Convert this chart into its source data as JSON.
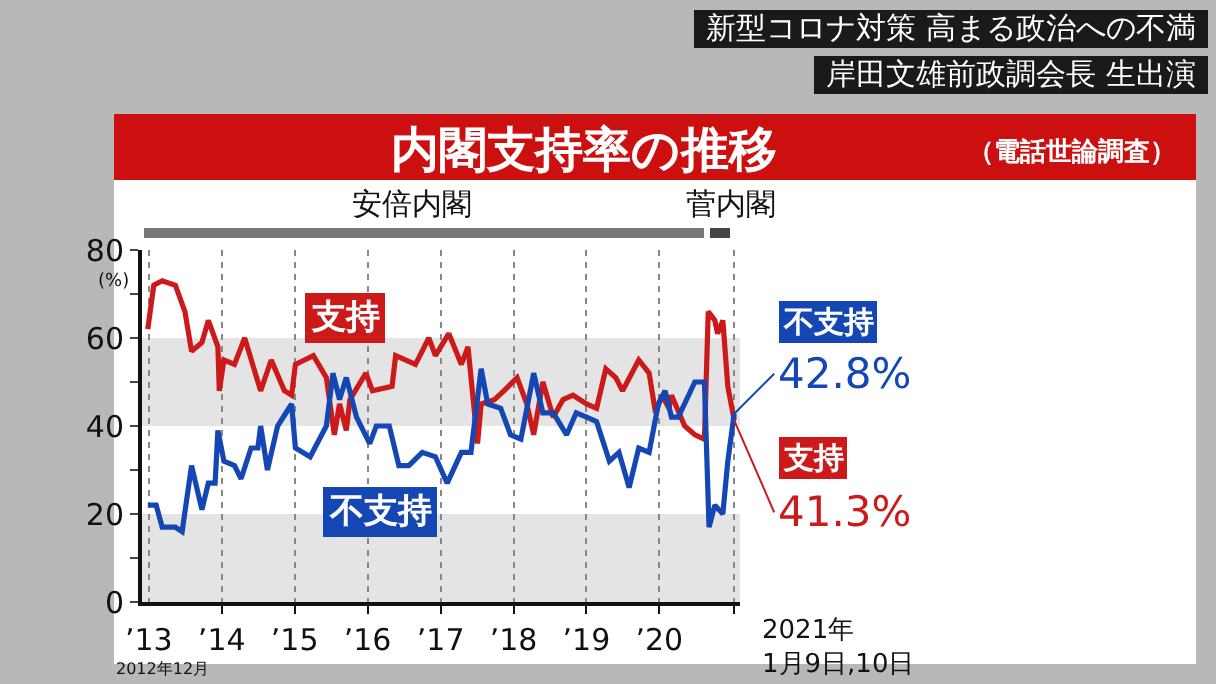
{
  "chart_data": {
    "type": "line",
    "title": "内閣支持率の推移",
    "subtitle": "（電話世論調査）",
    "ylabel": "(%)",
    "annotations": [
      "新型コロナ対策 高まる政治への不満",
      "岸田文雄前政調会長 生出演",
      "2012年12月",
      "2021年\n1月9日,10日",
      "安倍内閣",
      "菅内閣"
    ],
    "xlim": [
      "2012-11-28",
      "2021-02-08"
    ],
    "xticks": [
      {
        "value": "2013-01-01",
        "label": "’13"
      },
      {
        "value": "2014-01-01",
        "label": "’14"
      },
      {
        "value": "2015-01-01",
        "label": "’15"
      },
      {
        "value": "2016-01-01",
        "label": "’16"
      },
      {
        "value": "2017-01-01",
        "label": "’17"
      },
      {
        "value": "2018-01-01",
        "label": "’18"
      },
      {
        "value": "2019-01-01",
        "label": "’19"
      },
      {
        "value": "2020-01-01",
        "label": "’20"
      },
      {
        "value": "2021-01-10",
        "label": null
      }
    ],
    "ylim": [
      0,
      80
    ],
    "yticks": [
      0,
      {
        "value": 10,
        "label": null
      },
      20,
      {
        "value": 30,
        "label": null
      },
      40,
      {
        "value": 50,
        "label": null
      },
      60,
      {
        "value": 70,
        "label": null
      },
      80
    ],
    "grid": "x",
    "legend": false,
    "line_style": "solid",
    "bands": [
      {
        "axis": "y",
        "from": 0,
        "to": 20,
        "color": "#e4e4e4"
      },
      {
        "axis": "y",
        "from": 40,
        "to": 60,
        "color": "#e4e4e4"
      }
    ],
    "series": [
      {
        "name": "支持",
        "color": "#cc1a1a",
        "x": [
          "2012-12-27",
          "2013-01-26",
          "2013-03-09",
          "2013-05-14",
          "2013-07-01",
          "2013-08-03",
          "2013-09-24",
          "2013-10-26",
          "2013-12-13",
          "2013-12-20",
          "2014-01-12",
          "2014-03-06",
          "2014-04-26",
          "2014-07-15",
          "2014-09-06",
          "2014-11-11",
          "2014-12-17",
          "2015-01-05",
          "2015-04-05",
          "2015-06-09",
          "2015-07-19",
          "2015-08-14",
          "2015-09-17",
          "2015-10-05",
          "2015-12-24",
          "2016-01-26",
          "2016-05-03",
          "2016-05-21",
          "2016-08-28",
          "2016-11-03",
          "2016-12-06",
          "2017-02-11",
          "2017-04-15",
          "2017-05-18",
          "2017-07-05",
          "2017-07-23",
          "2017-09-27",
          "2017-11-14",
          "2018-01-19",
          "2018-03-09",
          "2018-04-12",
          "2018-05-28",
          "2018-07-19",
          "2018-09-06",
          "2018-10-26",
          "2019-01-02",
          "2019-02-21",
          "2019-04-08",
          "2019-05-28",
          "2019-07-01",
          "2019-09-20",
          "2019-11-11",
          "2019-12-13",
          "2020-01-15",
          "2020-02-18",
          "2020-03-02",
          "2020-05-07",
          "2020-06-27",
          "2020-08-14",
          "2020-09-02",
          "2020-10-05",
          "2020-10-19",
          "2020-11-14",
          "2020-12-09",
          "2021-01-10"
        ],
        "values": [
          62,
          72,
          73,
          72,
          66,
          57,
          59,
          64,
          58,
          48,
          55,
          54,
          60,
          48,
          55,
          48,
          47,
          54,
          56,
          51,
          38,
          45,
          39,
          46,
          52,
          48,
          49,
          56,
          54,
          60,
          56,
          61,
          54,
          58,
          36,
          45,
          46,
          48,
          51,
          45,
          38,
          50,
          42,
          46,
          47,
          45,
          44,
          53,
          51,
          48,
          55,
          52,
          43,
          47,
          44,
          47,
          40,
          38,
          37,
          66,
          64,
          61,
          64,
          49,
          41.3
        ],
        "value_labels": [
          null,
          null,
          null,
          null,
          null,
          null,
          null,
          null,
          null,
          null,
          null,
          null,
          null,
          null,
          null,
          null,
          null,
          null,
          null,
          null,
          null,
          null,
          null,
          null,
          null,
          null,
          null,
          null,
          null,
          null,
          null,
          null,
          null,
          null,
          null,
          null,
          null,
          null,
          null,
          null,
          null,
          null,
          null,
          null,
          null,
          null,
          null,
          null,
          null,
          null,
          null,
          null,
          null,
          null,
          null,
          null,
          null,
          null,
          null,
          null,
          null,
          null,
          null,
          null,
          "41.3%"
        ]
      },
      {
        "name": "不支持",
        "color": "#1446b4",
        "x": [
          "2012-12-27",
          "2013-02-07",
          "2013-03-09",
          "2013-05-14",
          "2013-06-17",
          "2013-08-03",
          "2013-09-24",
          "2013-10-26",
          "2013-11-29",
          "2013-12-13",
          "2014-01-12",
          "2014-03-06",
          "2014-04-08",
          "2014-05-28",
          "2014-07-01",
          "2014-07-15",
          "2014-08-18",
          "2014-10-08",
          "2014-12-17",
          "2015-01-05",
          "2015-03-20",
          "2015-06-09",
          "2015-07-12",
          "2015-08-14",
          "2015-09-17",
          "2015-11-07",
          "2016-01-12",
          "2016-02-14",
          "2016-04-19",
          "2016-06-06",
          "2016-07-26",
          "2016-10-01",
          "2016-12-06",
          "2017-02-03",
          "2017-04-15",
          "2017-06-02",
          "2017-07-23",
          "2017-08-25",
          "2017-10-29",
          "2017-12-17",
          "2018-02-07",
          "2018-04-12",
          "2018-05-28",
          "2018-07-19",
          "2018-09-24",
          "2018-11-11",
          "2019-01-02",
          "2019-02-21",
          "2019-04-26",
          "2019-06-13",
          "2019-08-03",
          "2019-09-20",
          "2019-11-11",
          "2019-12-27",
          "2020-01-30",
          "2020-03-02",
          "2020-04-05",
          "2020-06-27",
          "2020-08-14",
          "2020-09-06",
          "2020-10-05",
          "2020-11-14",
          "2020-12-09",
          "2021-01-10"
        ],
        "values": [
          22,
          22,
          17,
          17,
          16,
          31,
          21,
          27,
          27,
          39,
          32,
          31,
          28,
          35,
          35,
          40,
          30,
          40,
          45,
          35,
          33,
          40,
          52,
          46,
          51,
          42,
          36,
          40,
          40,
          31,
          31,
          34,
          33,
          27,
          34,
          34,
          53,
          45,
          44,
          38,
          37,
          52,
          43,
          43,
          38,
          43,
          42,
          41,
          32,
          34,
          26,
          35,
          34,
          45,
          48,
          42,
          42,
          50,
          50,
          17,
          22,
          20,
          32,
          42.8
        ],
        "value_labels": [
          null,
          null,
          null,
          null,
          null,
          null,
          null,
          null,
          null,
          null,
          null,
          null,
          null,
          null,
          null,
          null,
          null,
          null,
          null,
          null,
          null,
          null,
          null,
          null,
          null,
          null,
          null,
          null,
          null,
          null,
          null,
          null,
          null,
          null,
          null,
          null,
          null,
          null,
          null,
          null,
          null,
          null,
          null,
          null,
          null,
          null,
          null,
          null,
          null,
          null,
          null,
          null,
          null,
          null,
          null,
          null,
          null,
          null,
          null,
          null,
          null,
          null,
          null,
          "42.8%"
        ]
      }
    ]
  }
}
